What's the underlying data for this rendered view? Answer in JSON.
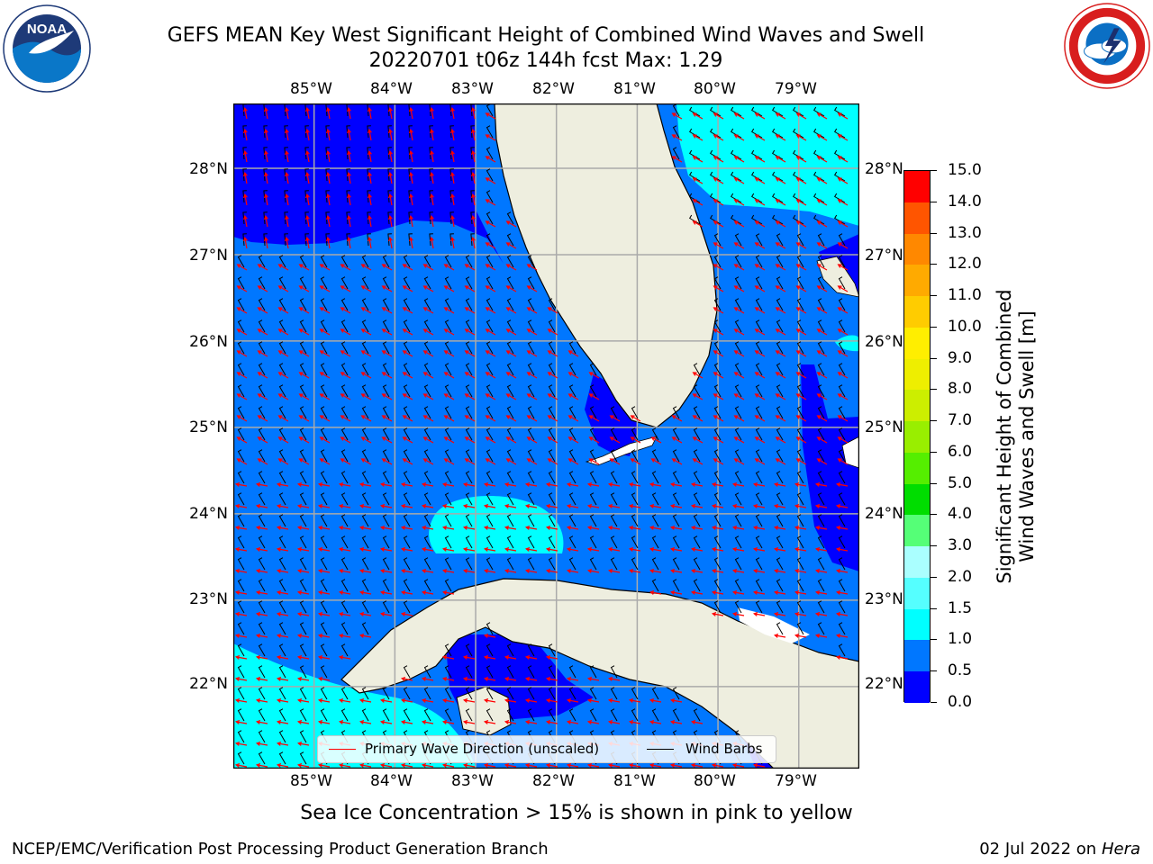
{
  "title": {
    "line1": "GEFS MEAN Key West Significant Height of Combined Wind Waves and Swell",
    "line2": "20220701 t06z 144h fcst   Max: 1.29"
  },
  "logos": {
    "noaa": {
      "text": "NOAA",
      "ring_text": "NATIONAL OCEANIC AND ATMOSPHERIC ADMINISTRATION · U.S. DEPARTMENT OF COMMERCE"
    },
    "nws": {
      "ring_text": "NATIONAL WEATHER SERVICE"
    }
  },
  "map": {
    "lon_labels": [
      "85°W",
      "84°W",
      "83°W",
      "82°W",
      "81°W",
      "80°W",
      "79°W"
    ],
    "lat_labels": [
      "28°N",
      "27°N",
      "26°N",
      "25°N",
      "24°N",
      "23°N",
      "22°N"
    ],
    "lon_range": [
      -86.0,
      -78.25
    ],
    "lat_range": [
      21.05,
      28.75
    ],
    "lon_ticks": [
      -85,
      -84,
      -83,
      -82,
      -81,
      -80,
      -79
    ],
    "lat_ticks": [
      28,
      27,
      26,
      25,
      24,
      23,
      22
    ],
    "grid": true,
    "colors": {
      "land": "#eeeedf",
      "band_0_0_5": "#0000ff",
      "band_0_5_1_0": "#0077ff",
      "band_1_0_1_5": "#00ffff",
      "wave_arrow": "#ff0000",
      "wind_barb": "#000000"
    }
  },
  "legend": {
    "items": [
      {
        "label": "Primary Wave Direction (unscaled)",
        "color": "#ff0000"
      },
      {
        "label": "Wind Barbs",
        "color": "#000000"
      }
    ]
  },
  "colorbar": {
    "label_line1": "Significant Height of Combined",
    "label_line2": "Wind Waves and Swell [m]",
    "tick_labels": [
      "15.0",
      "14.0",
      "13.0",
      "12.0",
      "11.0",
      "10.0",
      "9.0",
      "8.0",
      "7.0",
      "6.0",
      "5.0",
      "4.0",
      "3.0",
      "2.0",
      "1.5",
      "1.0",
      "0.5",
      "0.0"
    ],
    "bounds": [
      0.0,
      0.5,
      1.0,
      1.5,
      2.0,
      3.0,
      4.0,
      5.0,
      6.0,
      7.0,
      8.0,
      9.0,
      10.0,
      11.0,
      12.0,
      13.0,
      14.0,
      15.0
    ],
    "colors": [
      "#0000ff",
      "#0077ff",
      "#00ffff",
      "#55ffff",
      "#aaffff",
      "#55ff77",
      "#00dd00",
      "#55ee00",
      "#99ee00",
      "#ccee00",
      "#eeee00",
      "#ffee00",
      "#ffcc00",
      "#ffaa00",
      "#ff8800",
      "#ff5500",
      "#ff0000"
    ]
  },
  "footnote": "Sea Ice Concentration > 15% is shown in pink to yellow",
  "credit_left": "NCEP/EMC/Verification Post Processing Product Generation Branch",
  "credit_right_prefix": "02 Jul 2022 on",
  "credit_right_system": "Hera"
}
